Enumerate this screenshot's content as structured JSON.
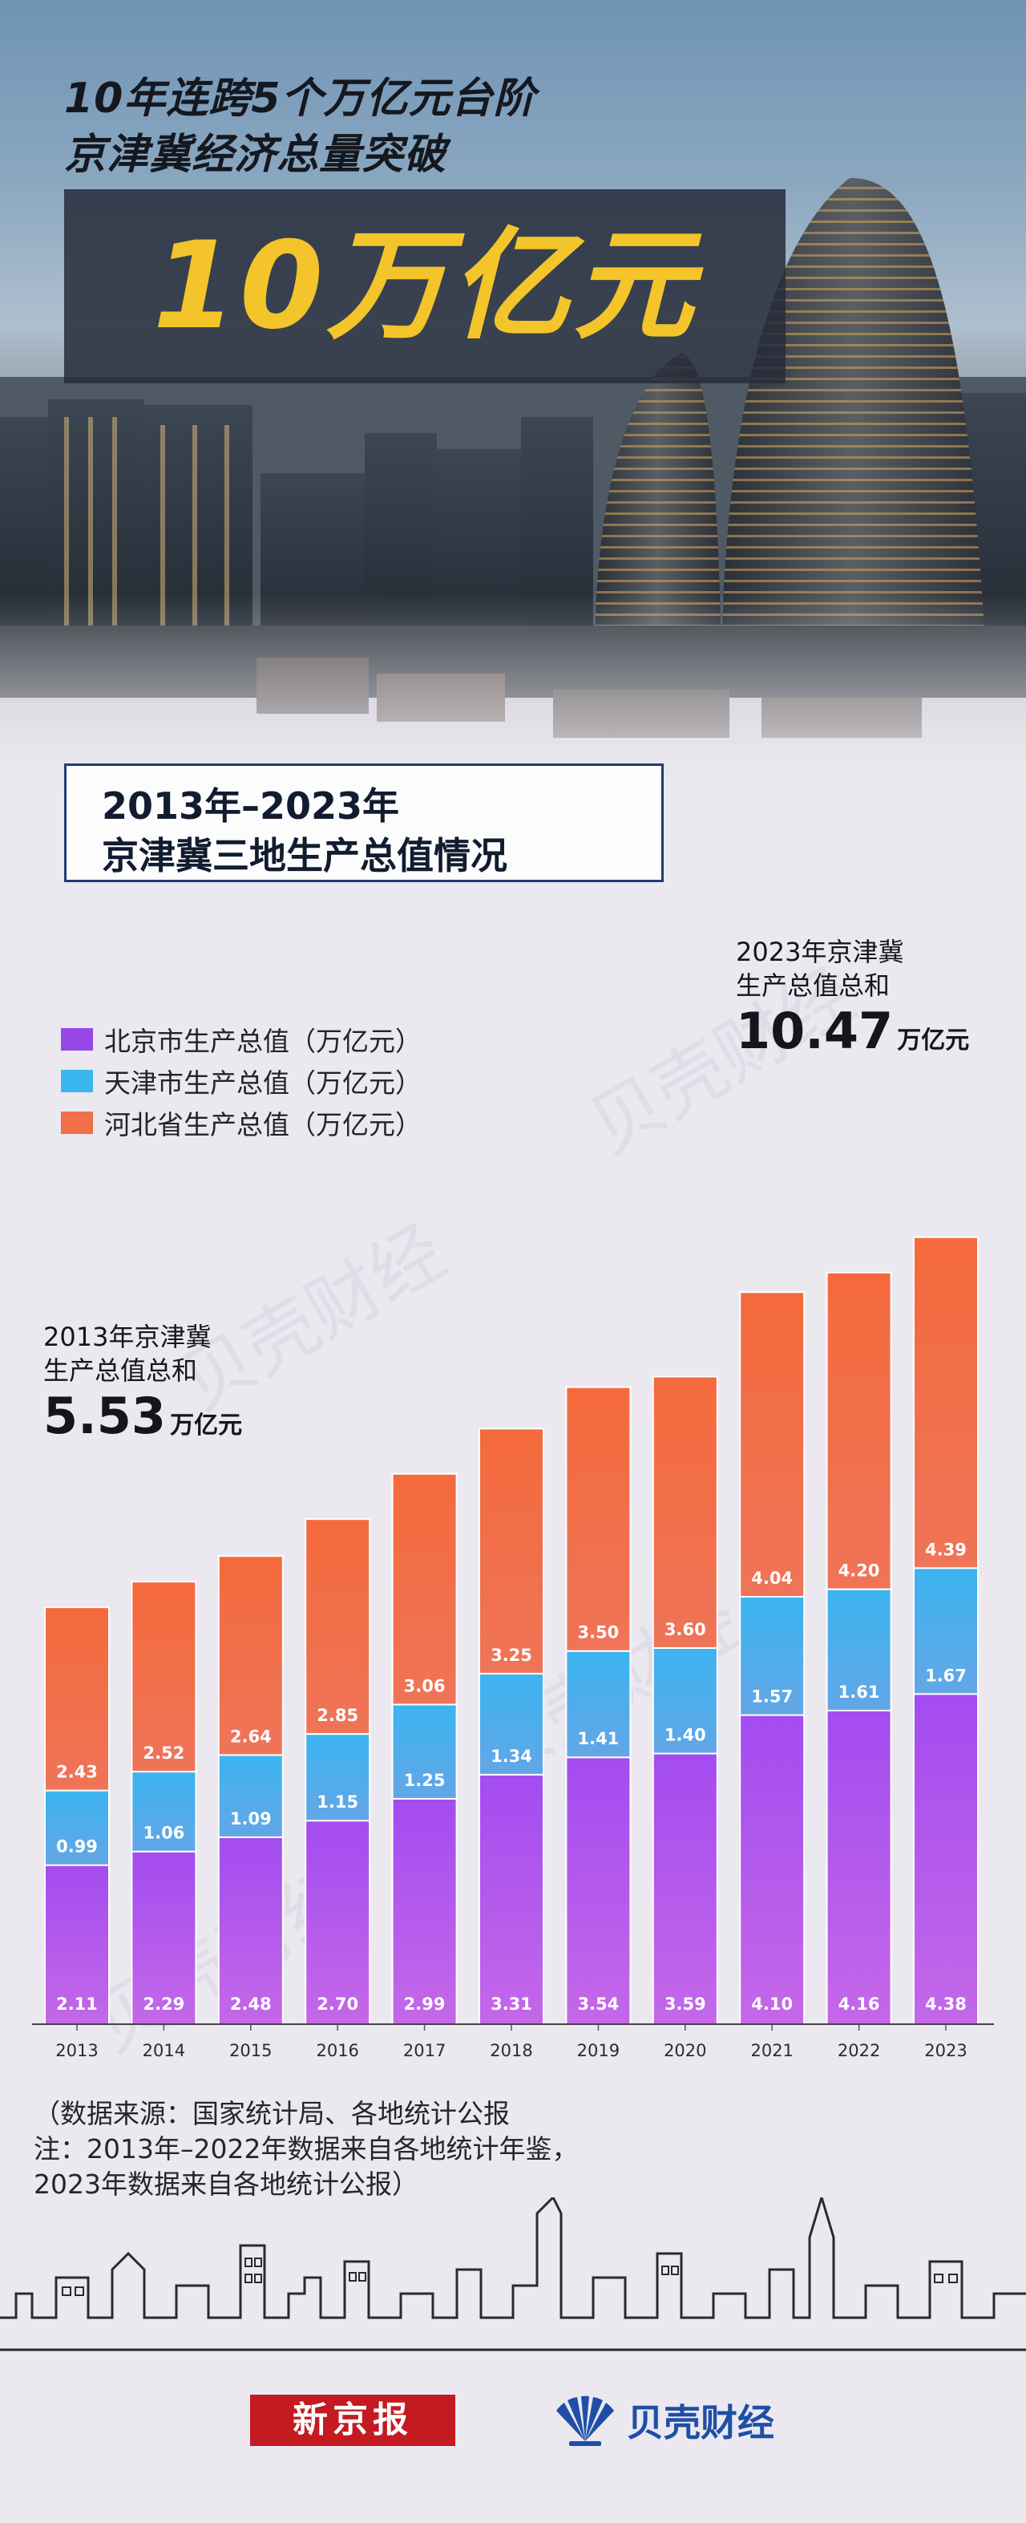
{
  "hero": {
    "line1": "10年连跨5个万亿元台阶",
    "line2": "京津冀经济总量突破",
    "headline": "10万亿元"
  },
  "subtitle": {
    "line1": "2013年–2023年",
    "line2": "京津冀三地生产总值情况"
  },
  "colors": {
    "beijing": "#9646e6",
    "tianjin": "#3ab6ee",
    "hebei": "#f06e48",
    "headline_text": "#f3c52a",
    "headline_box": "#262c3a",
    "subtitle_border": "#1f3d73",
    "logo_red": "#c41a22",
    "logo_blue": "#1e4fa8"
  },
  "chart_data": {
    "type": "bar",
    "stacked": true,
    "categories": [
      "2013",
      "2014",
      "2015",
      "2016",
      "2017",
      "2018",
      "2019",
      "2020",
      "2021",
      "2022",
      "2023"
    ],
    "series": [
      {
        "name": "北京市生产总值（万亿元）",
        "values": [
          2.11,
          2.29,
          2.48,
          2.7,
          2.99,
          3.31,
          3.54,
          3.59,
          4.1,
          4.16,
          4.38
        ]
      },
      {
        "name": "天津市生产总值（万亿元）",
        "values": [
          0.99,
          1.06,
          1.09,
          1.15,
          1.25,
          1.34,
          1.41,
          1.4,
          1.57,
          1.61,
          1.67
        ]
      },
      {
        "name": "河北省生产总值（万亿元）",
        "values": [
          2.43,
          2.52,
          2.64,
          2.85,
          3.06,
          3.25,
          3.5,
          3.6,
          4.04,
          4.2,
          4.39
        ]
      }
    ],
    "ylim": [
      0,
      10.47
    ],
    "grid": false,
    "legend": "top-left",
    "value_labels": true
  },
  "legend": [
    {
      "label": "北京市生产总值（万亿元）"
    },
    {
      "label": "天津市生产总值（万亿元）"
    },
    {
      "label": "河北省生产总值（万亿元）"
    }
  ],
  "annotations": {
    "start": {
      "line1": "2013年京津冀",
      "line2": "生产总值总和",
      "total": "5.53",
      "unit": "万亿元"
    },
    "end": {
      "line1": "2023年京津冀",
      "line2": "生产总值总和",
      "total": "10.47",
      "unit": "万亿元"
    }
  },
  "notes": {
    "line1": "（数据来源：国家统计局、各地统计公报",
    "line2": "注：2013年–2022年数据来自各地统计年鉴，",
    "line3": "2023年数据来自各地统计公报）"
  },
  "logos": {
    "xinjingbao": "新京报",
    "beike": "贝壳财经",
    "beike_icon": "shell-icon"
  }
}
